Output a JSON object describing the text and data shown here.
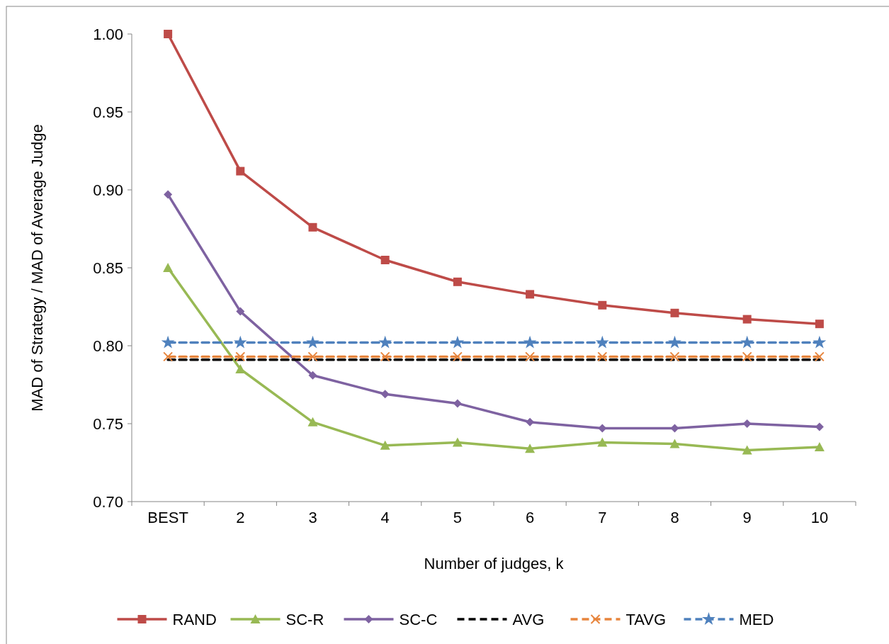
{
  "chart_data": {
    "type": "line",
    "xlabel": "Number of judges, k",
    "ylabel": "MAD of Strategy / MAD of Average Judge",
    "categories": [
      "BEST",
      "2",
      "3",
      "4",
      "5",
      "6",
      "7",
      "8",
      "9",
      "10"
    ],
    "ylim": [
      0.7,
      1.0
    ],
    "yticks": [
      {
        "value": 0.7,
        "label": "0.70"
      },
      {
        "value": 0.75,
        "label": "0.75"
      },
      {
        "value": 0.8,
        "label": "0.80"
      },
      {
        "value": 0.85,
        "label": "0.85"
      },
      {
        "value": 0.9,
        "label": "0.90"
      },
      {
        "value": 0.95,
        "label": "0.95"
      },
      {
        "value": 1.0,
        "label": "1.00"
      }
    ],
    "grid": false,
    "legend": "bottom",
    "series": [
      {
        "name": "RAND",
        "color": "#be4b48",
        "marker": "square",
        "line_style": "solid",
        "values": [
          1.0,
          0.912,
          0.876,
          0.855,
          0.841,
          0.833,
          0.826,
          0.821,
          0.817,
          0.814
        ]
      },
      {
        "name": "SC-R",
        "color": "#98b954",
        "marker": "triangle",
        "line_style": "solid",
        "values": [
          0.85,
          0.785,
          0.751,
          0.736,
          0.738,
          0.734,
          0.738,
          0.737,
          0.733,
          0.735
        ]
      },
      {
        "name": "SC-C",
        "color": "#7e62a1",
        "marker": "diamond",
        "line_style": "solid",
        "values": [
          0.897,
          0.822,
          0.781,
          0.769,
          0.763,
          0.751,
          0.747,
          0.747,
          0.75,
          0.748
        ]
      },
      {
        "name": "AVG",
        "color": "#000000",
        "marker": "none",
        "line_style": "dashed",
        "values": [
          0.791,
          0.791,
          0.791,
          0.791,
          0.791,
          0.791,
          0.791,
          0.791,
          0.791,
          0.791
        ]
      },
      {
        "name": "TAVG",
        "color": "#e7853d",
        "marker": "cross",
        "line_style": "dashed",
        "values": [
          0.793,
          0.793,
          0.793,
          0.793,
          0.793,
          0.793,
          0.793,
          0.793,
          0.793,
          0.793
        ]
      },
      {
        "name": "MED",
        "color": "#4f81bd",
        "marker": "star",
        "line_style": "dashed",
        "values": [
          0.802,
          0.802,
          0.802,
          0.802,
          0.802,
          0.802,
          0.802,
          0.802,
          0.802,
          0.802
        ]
      }
    ]
  }
}
